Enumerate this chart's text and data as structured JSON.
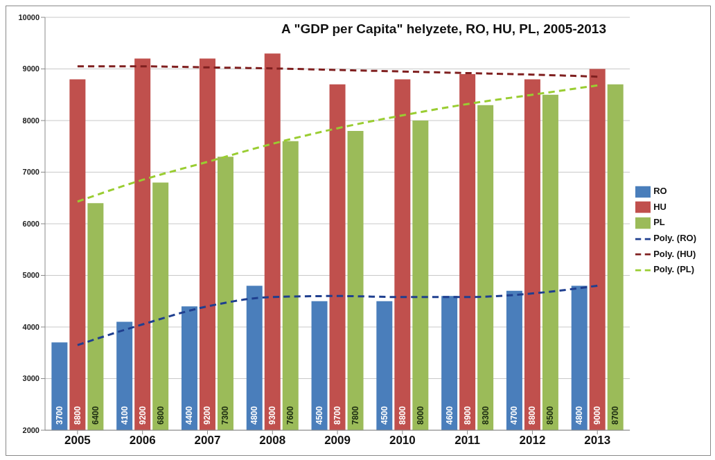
{
  "chart_data": {
    "type": "bar",
    "title": "A \"GDP per Capita\" helyzete, RO, HU, PL, 2005-2013",
    "categories": [
      "2005",
      "2006",
      "2007",
      "2008",
      "2009",
      "2010",
      "2011",
      "2012",
      "2013"
    ],
    "series": [
      {
        "name": "RO",
        "color": "#4a7ebb",
        "values": [
          3700,
          4100,
          4400,
          4800,
          4500,
          4500,
          4600,
          4700,
          4800
        ],
        "value_labels": [
          "3700",
          "4100",
          "4400",
          "4800",
          "4500",
          "4500",
          "4600",
          "4700",
          "4800"
        ]
      },
      {
        "name": "HU",
        "color": "#c0504d",
        "values": [
          8800,
          9200,
          9200,
          9300,
          8700,
          8800,
          8900,
          8800,
          9000
        ],
        "value_labels": [
          "8800",
          "9200",
          "9200",
          "9300",
          "8700",
          "8800",
          "8900",
          "8800",
          "9000"
        ]
      },
      {
        "name": "PL",
        "color": "#9bbb59",
        "values": [
          6400,
          6800,
          7300,
          7600,
          7800,
          8000,
          8300,
          8500,
          8700
        ],
        "value_labels": [
          "6400",
          "6800",
          "7300",
          "7600",
          "7800",
          "8000",
          "8300",
          "8500",
          "8700"
        ]
      },
      {
        "name": "Poly. (RO)",
        "type": "line",
        "color": "#1f3f8f",
        "line_style": "dashed",
        "values": [
          3650,
          4050,
          4400,
          4580,
          4600,
          4580,
          4580,
          4650,
          4800
        ]
      },
      {
        "name": "Poly. (HU)",
        "type": "line",
        "color": "#7f1f1f",
        "line_style": "dashed",
        "values": [
          9050,
          9050,
          9030,
          9010,
          8980,
          8950,
          8920,
          8890,
          8850
        ]
      },
      {
        "name": "Poly. (PL)",
        "type": "line",
        "color": "#9acd32",
        "line_style": "dashed",
        "values": [
          6430,
          6850,
          7200,
          7550,
          7850,
          8100,
          8320,
          8500,
          8680
        ]
      }
    ],
    "ylim": [
      2000,
      10000
    ],
    "yticks": [
      2000,
      3000,
      4000,
      5000,
      6000,
      7000,
      8000,
      9000,
      10000
    ],
    "grid": "y",
    "legend": "right",
    "marker": "none"
  }
}
